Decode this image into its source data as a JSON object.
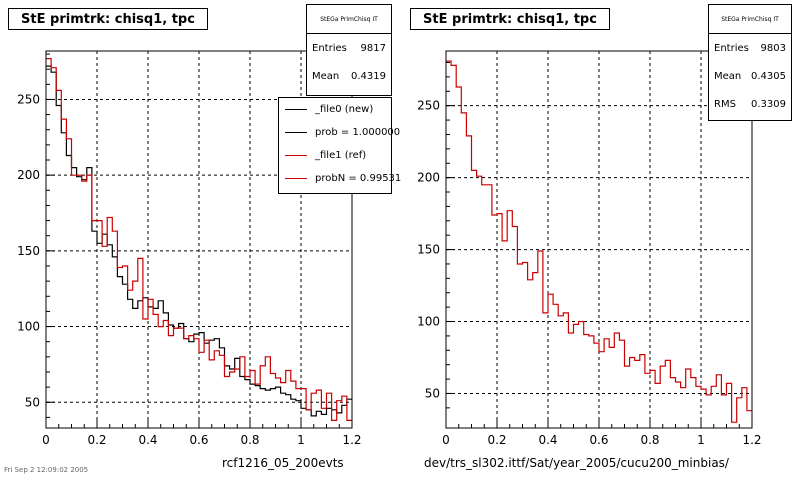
{
  "chart_data": [
    {
      "type": "histogram",
      "title": "StE primtrk: chisq1, tpc",
      "xlabel": "rcf1216_05_200evts",
      "ylabel": "",
      "xlim": [
        0,
        1.2
      ],
      "ylim": [
        33,
        282
      ],
      "xticks": [
        "0",
        "0.2",
        "0.4",
        "0.6",
        "0.8",
        "1",
        "1.2"
      ],
      "yticks": [
        "50",
        "100",
        "150",
        "200",
        "250"
      ],
      "grid": true,
      "bin_width": 0.02,
      "stats": {
        "header": "StEGa PrimChisq IT",
        "rows": [
          {
            "label": "Entries",
            "value": "9817"
          },
          {
            "label": "Mean",
            "value": "0.4319"
          }
        ]
      },
      "legend": {
        "placement": "top-right",
        "entries": [
          {
            "label": "_file0 (new)",
            "color": "#000000"
          },
          {
            "label": "prob = 1.000000",
            "color": "#000000"
          },
          {
            "label": "_file1 (ref)",
            "color": "#cc0000"
          },
          {
            "label": "probN = 0.99531",
            "color": "#cc0000"
          }
        ]
      },
      "series": [
        {
          "name": "_file0 (new)",
          "color": "#000000",
          "values": [
            272,
            268,
            246,
            228,
            213,
            205,
            199,
            197,
            205,
            163,
            155,
            161,
            154,
            146,
            133,
            128,
            118,
            112,
            117,
            119,
            113,
            112,
            117,
            109,
            101,
            99,
            102,
            92,
            90,
            95,
            96,
            89,
            91,
            92,
            86,
            74,
            72,
            79,
            67,
            65,
            62,
            61,
            59,
            58,
            59,
            60,
            56,
            55,
            52,
            51,
            46,
            45,
            41,
            44,
            42,
            46,
            45,
            43,
            48,
            52
          ]
        },
        {
          "name": "_file1 (ref)",
          "color": "#cc0000",
          "values": [
            277,
            271,
            256,
            237,
            224,
            200,
            200,
            196,
            200,
            170,
            170,
            153,
            172,
            163,
            139,
            140,
            124,
            130,
            145,
            105,
            118,
            108,
            100,
            104,
            94,
            99,
            99,
            92,
            94,
            92,
            83,
            91,
            78,
            84,
            81,
            67,
            70,
            72,
            80,
            67,
            71,
            62,
            74,
            80,
            69,
            66,
            63,
            71,
            64,
            59,
            59,
            45,
            56,
            58,
            46,
            56,
            38,
            51,
            54,
            38
          ]
        }
      ]
    },
    {
      "type": "histogram",
      "title": "StE primtrk: chisq1, tpc",
      "xlabel": "dev/trs_sl302.ittf/Sat/year_2005/cucu200_minbias/",
      "ylabel": "",
      "xlim": [
        0,
        1.2
      ],
      "ylim": [
        26,
        288
      ],
      "xticks": [
        "0",
        "0.2",
        "0.4",
        "0.6",
        "0.8",
        "1",
        "1.2"
      ],
      "yticks": [
        "50",
        "100",
        "150",
        "200",
        "250"
      ],
      "grid": true,
      "bin_width": 0.02,
      "stats": {
        "header": "StEGa PrimChisq IT",
        "rows": [
          {
            "label": "Entries",
            "value": "9803"
          },
          {
            "label": "Mean",
            "value": "0.4305"
          },
          {
            "label": "RMS",
            "value": "0.3309"
          }
        ]
      },
      "series": [
        {
          "name": "_file1 (ref)",
          "color": "#cc0000",
          "values": [
            281,
            278,
            263,
            245,
            229,
            205,
            201,
            195,
            195,
            174,
            175,
            156,
            177,
            166,
            140,
            141,
            129,
            134,
            149,
            106,
            119,
            112,
            104,
            106,
            92,
            98,
            100,
            91,
            90,
            85,
            79,
            88,
            82,
            92,
            87,
            69,
            75,
            73,
            77,
            64,
            66,
            57,
            69,
            73,
            61,
            58,
            54,
            67,
            61,
            55,
            53,
            49,
            55,
            63,
            49,
            57,
            30,
            47,
            54,
            38
          ]
        }
      ]
    }
  ],
  "footer_stamp": "Fri Sep 2 12:09:02 2005"
}
